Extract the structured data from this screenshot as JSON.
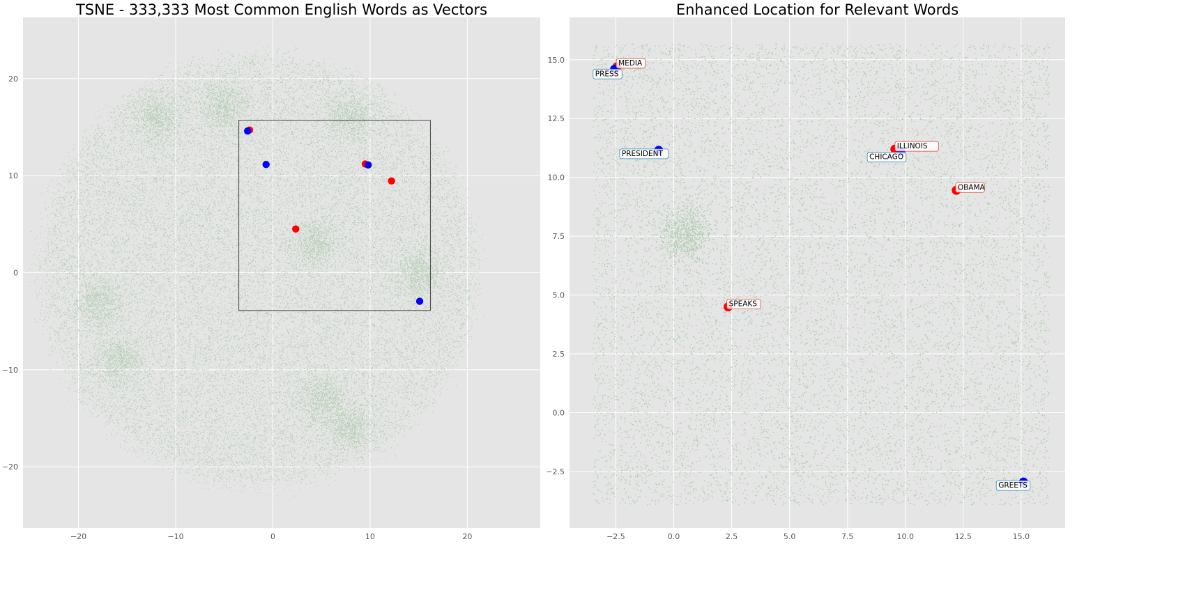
{
  "colors": {
    "background": "#ffffff",
    "axes_face": "#e5e5e5",
    "grid": "#ffffff",
    "cloud": "#8fbc8f",
    "red": "#ff0000",
    "blue": "#0000ff",
    "red_label_edge": "#e24a33",
    "blue_label_edge": "#348abd"
  },
  "chart_data": [
    {
      "type": "scatter",
      "title": "TSNE - 333,333 Most Common English Words as Vectors",
      "xlabel": "",
      "ylabel": "",
      "xlim": [
        -25.7,
        27.5
      ],
      "ylim": [
        -26.3,
        26.3
      ],
      "xticks": [
        -20,
        -10,
        0,
        10,
        20
      ],
      "xtick_labels": [
        "−20",
        "−10",
        "0",
        "10",
        "20"
      ],
      "yticks": [
        -20,
        -10,
        0,
        10,
        20
      ],
      "ytick_labels": [
        "−20",
        "−10",
        "0",
        "10",
        "20"
      ],
      "grid": true,
      "background_cloud": {
        "color": "green",
        "approx_count": 333333,
        "extent_x": [
          -24,
          25
        ],
        "extent_y": [
          -24,
          24.5
        ]
      },
      "zoom_box": {
        "x": [
          -3.5,
          16.2
        ],
        "y": [
          -3.9,
          15.7
        ]
      },
      "series": [
        {
          "color": "red",
          "points": [
            {
              "x": -2.4,
              "y": 14.7
            },
            {
              "x": 9.5,
              "y": 11.2
            },
            {
              "x": 12.2,
              "y": 9.45
            },
            {
              "x": 2.35,
              "y": 4.5
            }
          ]
        },
        {
          "color": "blue",
          "points": [
            {
              "x": -2.6,
              "y": 14.6
            },
            {
              "x": -0.7,
              "y": 11.15
            },
            {
              "x": 9.8,
              "y": 11.1
            },
            {
              "x": 15.1,
              "y": -2.95
            }
          ]
        }
      ]
    },
    {
      "type": "scatter",
      "title": "Enhanced Location for Relevant Words",
      "xlabel": "",
      "ylabel": "",
      "xlim": [
        -4.5,
        16.9
      ],
      "ylim": [
        -4.9,
        16.8
      ],
      "xticks": [
        -2.5,
        0.0,
        2.5,
        5.0,
        7.5,
        10.0,
        12.5,
        15.0
      ],
      "xtick_labels": [
        "−2.5",
        "0.0",
        "2.5",
        "5.0",
        "7.5",
        "10.0",
        "12.5",
        "15.0"
      ],
      "yticks": [
        -2.5,
        0.0,
        2.5,
        5.0,
        7.5,
        10.0,
        12.5,
        15.0
      ],
      "ytick_labels": [
        "−2.5",
        "0.0",
        "2.5",
        "5.0",
        "7.5",
        "10.0",
        "12.5",
        "15.0"
      ],
      "grid": true,
      "background_cloud": {
        "color": "green",
        "extent_x": [
          -3.5,
          16.2
        ],
        "extent_y": [
          -3.9,
          15.7
        ]
      },
      "series": [
        {
          "color": "red",
          "points": [
            {
              "x": -2.45,
              "y": 14.7,
              "label": "MEDIA"
            },
            {
              "x": 9.55,
              "y": 11.2,
              "label": "ILLINOIS"
            },
            {
              "x": 12.2,
              "y": 9.45,
              "label": "OBAMA"
            },
            {
              "x": 2.35,
              "y": 4.5,
              "label": "SPEAKS"
            }
          ]
        },
        {
          "color": "blue",
          "points": [
            {
              "x": -2.55,
              "y": 14.6,
              "label": "PRESS"
            },
            {
              "x": -0.65,
              "y": 11.15,
              "label": "PRESIDENT"
            },
            {
              "x": 9.8,
              "y": 11.1,
              "label": "CHICAGO"
            },
            {
              "x": 15.1,
              "y": -2.95,
              "label": "GREETS"
            }
          ]
        }
      ]
    }
  ]
}
